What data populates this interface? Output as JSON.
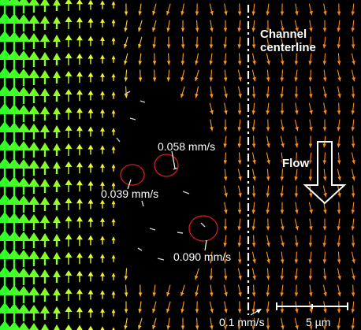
{
  "figure": {
    "background": "#000000",
    "labels": {
      "centerline": [
        "Channel",
        "centerline"
      ],
      "flow": "Flow",
      "speed_1": "0.058 mm/s",
      "speed_2": "0.039 mm/s",
      "speed_3": "0.090 mm/s",
      "velocity_scale": "0.1 mm/s",
      "length_scale": "5 µm"
    },
    "colors": {
      "fast_vectors": "#33ff1a",
      "slow_vectors": "#ff8c1a",
      "particle_markers": "#d81b1b",
      "annotation": "#ffffff"
    }
  }
}
